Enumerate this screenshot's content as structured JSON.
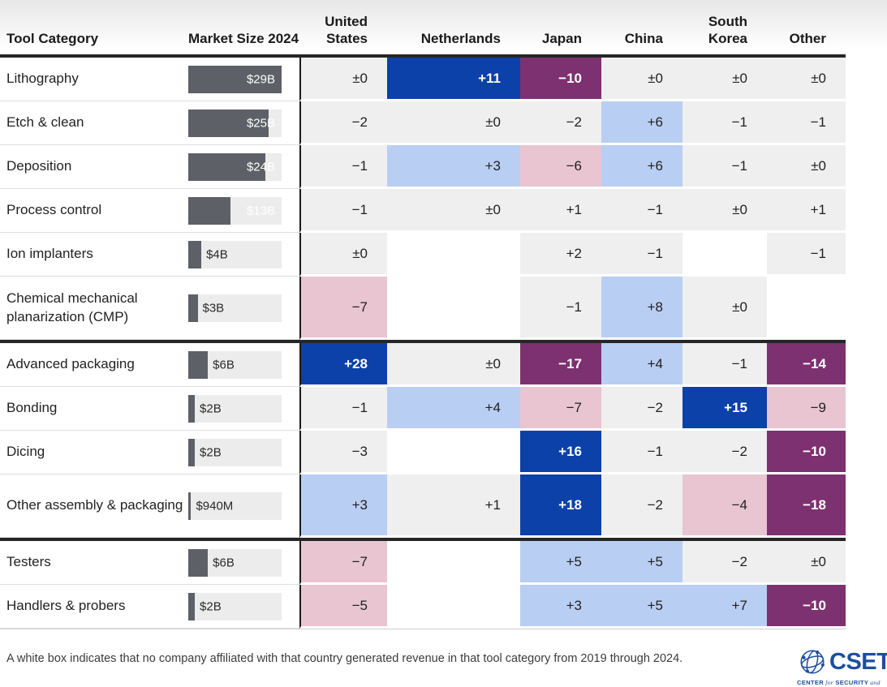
{
  "header": {
    "tool_category": "Tool Category",
    "market_size": "Market Size 2024",
    "countries": [
      "United States",
      "Netherlands",
      "Japan",
      "China",
      "South Korea",
      "Other"
    ]
  },
  "table": {
    "rows": [
      {
        "label": "Lithography",
        "size": "$29B",
        "size_pct": 100,
        "cells": [
          {
            "text": "±0",
            "tone": "g"
          },
          {
            "text": "+11",
            "tone": "db"
          },
          {
            "text": "−10",
            "tone": "pu"
          },
          {
            "text": "±0",
            "tone": "g"
          },
          {
            "text": "±0",
            "tone": "g"
          },
          {
            "text": "±0",
            "tone": "g"
          }
        ]
      },
      {
        "label": "Etch & clean",
        "size": "$25B",
        "size_pct": 86,
        "cells": [
          {
            "text": "−2",
            "tone": "g"
          },
          {
            "text": "±0",
            "tone": "g"
          },
          {
            "text": "−2",
            "tone": "g"
          },
          {
            "text": "+6",
            "tone": "lb"
          },
          {
            "text": "−1",
            "tone": "g"
          },
          {
            "text": "−1",
            "tone": "g"
          }
        ]
      },
      {
        "label": "Deposition",
        "size": "$24B",
        "size_pct": 83,
        "cells": [
          {
            "text": "−1",
            "tone": "g"
          },
          {
            "text": "+3",
            "tone": "lb"
          },
          {
            "text": "−6",
            "tone": "pk"
          },
          {
            "text": "+6",
            "tone": "lb"
          },
          {
            "text": "−1",
            "tone": "g"
          },
          {
            "text": "±0",
            "tone": "g"
          }
        ]
      },
      {
        "label": "Process control",
        "size": "$13B",
        "size_pct": 45,
        "cells": [
          {
            "text": "−1",
            "tone": "g"
          },
          {
            "text": "±0",
            "tone": "g"
          },
          {
            "text": "+1",
            "tone": "g"
          },
          {
            "text": "−1",
            "tone": "g"
          },
          {
            "text": "±0",
            "tone": "g"
          },
          {
            "text": "+1",
            "tone": "g"
          }
        ]
      },
      {
        "label": "Ion implanters",
        "size": "$4B",
        "size_pct": 14,
        "cells": [
          {
            "text": "±0",
            "tone": "g"
          },
          {
            "text": "",
            "tone": "none"
          },
          {
            "text": "+2",
            "tone": "g"
          },
          {
            "text": "−1",
            "tone": "g"
          },
          {
            "text": "",
            "tone": "none"
          },
          {
            "text": "−1",
            "tone": "g"
          }
        ]
      },
      {
        "label": "Chemical mechanical planarization (CMP)",
        "size": "$3B",
        "size_pct": 10,
        "two_line": true,
        "cells": [
          {
            "text": "−7",
            "tone": "pk"
          },
          {
            "text": "",
            "tone": "none"
          },
          {
            "text": "−1",
            "tone": "g"
          },
          {
            "text": "+8",
            "tone": "lb"
          },
          {
            "text": "±0",
            "tone": "g"
          },
          {
            "text": "",
            "tone": "none"
          }
        ]
      },
      {
        "label": "Advanced packaging",
        "size": "$6B",
        "size_pct": 21,
        "divider_before": true,
        "cells": [
          {
            "text": "+28",
            "tone": "db"
          },
          {
            "text": "±0",
            "tone": "g"
          },
          {
            "text": "−17",
            "tone": "pu"
          },
          {
            "text": "+4",
            "tone": "lb"
          },
          {
            "text": "−1",
            "tone": "g"
          },
          {
            "text": "−14",
            "tone": "pu"
          }
        ]
      },
      {
        "label": "Bonding",
        "size": "$2B",
        "size_pct": 7,
        "cells": [
          {
            "text": "−1",
            "tone": "g"
          },
          {
            "text": "+4",
            "tone": "lb"
          },
          {
            "text": "−7",
            "tone": "pk"
          },
          {
            "text": "−2",
            "tone": "g"
          },
          {
            "text": "+15",
            "tone": "db"
          },
          {
            "text": "−9",
            "tone": "pk"
          }
        ]
      },
      {
        "label": "Dicing",
        "size": "$2B",
        "size_pct": 7,
        "cells": [
          {
            "text": "−3",
            "tone": "g"
          },
          {
            "text": "",
            "tone": "none"
          },
          {
            "text": "+16",
            "tone": "db"
          },
          {
            "text": "−1",
            "tone": "g"
          },
          {
            "text": "−2",
            "tone": "g"
          },
          {
            "text": "−10",
            "tone": "pu"
          }
        ]
      },
      {
        "label": "Other assembly & packaging",
        "size": "$940M",
        "size_pct": 3,
        "two_line": true,
        "cells": [
          {
            "text": "+3",
            "tone": "lb"
          },
          {
            "text": "+1",
            "tone": "g"
          },
          {
            "text": "+18",
            "tone": "db"
          },
          {
            "text": "−2",
            "tone": "g"
          },
          {
            "text": "−4",
            "tone": "pk"
          },
          {
            "text": "−18",
            "tone": "pu"
          }
        ]
      },
      {
        "label": "Testers",
        "size": "$6B",
        "size_pct": 21,
        "divider_before": true,
        "cells": [
          {
            "text": "−7",
            "tone": "pk"
          },
          {
            "text": "",
            "tone": "none"
          },
          {
            "text": "+5",
            "tone": "lb"
          },
          {
            "text": "+5",
            "tone": "lb"
          },
          {
            "text": "−2",
            "tone": "g"
          },
          {
            "text": "±0",
            "tone": "g"
          }
        ]
      },
      {
        "label": "Handlers & probers",
        "size": "$2B",
        "size_pct": 7,
        "cells": [
          {
            "text": "−5",
            "tone": "pk"
          },
          {
            "text": "",
            "tone": "none"
          },
          {
            "text": "+3",
            "tone": "lb"
          },
          {
            "text": "+5",
            "tone": "lb"
          },
          {
            "text": "+7",
            "tone": "lb"
          },
          {
            "text": "−10",
            "tone": "pu"
          }
        ]
      }
    ]
  },
  "footnote": "A white box indicates that no company affiliated with that country generated revenue in that tool category from 2019 through 2024.",
  "logo": {
    "name": "CSET",
    "tagline_parts": [
      {
        "t": "CENTER",
        "italic": false
      },
      {
        "t": "for",
        "italic": true
      },
      {
        "t": "SECURITY",
        "italic": false
      },
      {
        "t": "and",
        "italic": true
      }
    ]
  },
  "colors": {
    "dark_blue": "#0b41a8",
    "light_blue": "#b9cef3",
    "pink": "#e8c5d1",
    "purple": "#7d3170",
    "neutral_gray": "#efefef",
    "empty_white": "#ffffff",
    "bar_gray": "#5d6066",
    "bar_track": "#ececec",
    "logo_blue": "#1d4f9e"
  },
  "chart_data": {
    "type": "heatmap",
    "title": "",
    "columns": [
      "United States",
      "Netherlands",
      "Japan",
      "China",
      "South Korea",
      "Other"
    ],
    "rows": [
      "Lithography",
      "Etch & clean",
      "Deposition",
      "Process control",
      "Ion implanters",
      "Chemical mechanical planarization (CMP)",
      "Advanced packaging",
      "Bonding",
      "Dicing",
      "Other assembly & packaging",
      "Testers",
      "Handlers & probers"
    ],
    "market_size_2024": [
      "$29B",
      "$25B",
      "$24B",
      "$13B",
      "$4B",
      "$3B",
      "$6B",
      "$2B",
      "$2B",
      "$940M",
      "$6B",
      "$2B"
    ],
    "values": [
      [
        0,
        11,
        -10,
        0,
        0,
        0
      ],
      [
        -2,
        0,
        -2,
        6,
        -1,
        -1
      ],
      [
        -1,
        3,
        -6,
        6,
        -1,
        0
      ],
      [
        -1,
        0,
        1,
        -1,
        0,
        1
      ],
      [
        0,
        null,
        2,
        -1,
        null,
        -1
      ],
      [
        -7,
        null,
        -1,
        8,
        0,
        null
      ],
      [
        28,
        0,
        -17,
        4,
        -1,
        -14
      ],
      [
        -1,
        4,
        -7,
        -2,
        15,
        -9
      ],
      [
        -3,
        null,
        16,
        -1,
        -2,
        -10
      ],
      [
        3,
        1,
        18,
        -2,
        -4,
        -18
      ],
      [
        -7,
        null,
        5,
        5,
        -2,
        0
      ],
      [
        -5,
        null,
        3,
        5,
        7,
        -10
      ]
    ],
    "null_meaning": "white box: no affiliated company revenue in category, 2019-2024",
    "section_breaks_after_row_index": [
      5,
      9
    ],
    "legend_position": "none",
    "grid": false
  }
}
